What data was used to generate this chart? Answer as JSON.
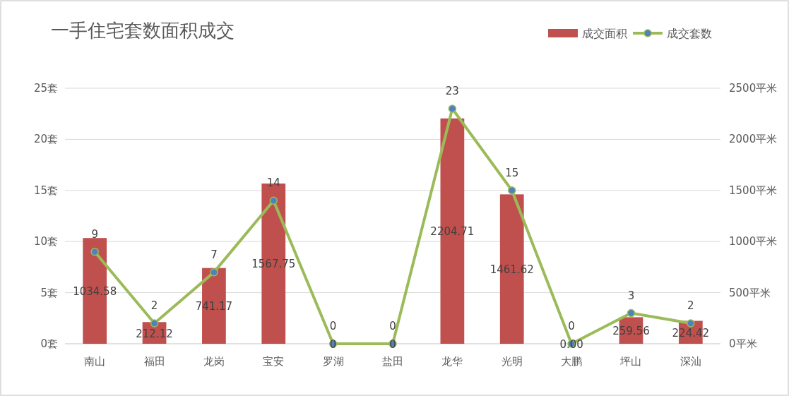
{
  "chart_data": {
    "type": "bar",
    "title": "一手住宅套数面积成交",
    "categories": [
      "南山",
      "福田",
      "龙岗",
      "宝安",
      "罗湖",
      "盐田",
      "龙华",
      "光明",
      "大鹏",
      "坪山",
      "深汕"
    ],
    "series": [
      {
        "name": "成交面积",
        "axis": "y2",
        "color": "#c0504d",
        "values": [
          1034.58,
          212.12,
          741.17,
          1567.75,
          0,
          0,
          2204.71,
          1461.62,
          0,
          259.56,
          224.42
        ],
        "value_labels": [
          "1034.58",
          "212.12",
          "741.17",
          "1567.75",
          "0",
          "0",
          "2204.71",
          "1461.62",
          "0.00",
          "259.56",
          "224.42"
        ]
      },
      {
        "name": "成交套数",
        "type": "line",
        "color": "#9bbb59",
        "values": [
          9,
          2,
          7,
          14,
          0,
          0,
          23,
          15,
          0,
          3,
          2
        ],
        "value_labels": [
          "9",
          "2",
          "7",
          "14",
          "0",
          "0",
          "23",
          "15",
          "0",
          "3",
          "2"
        ]
      }
    ],
    "ylim": [
      0,
      25
    ],
    "yticks": [
      {
        "value": 0,
        "label": "0套"
      },
      {
        "value": 5,
        "label": "5套"
      },
      {
        "value": 10,
        "label": "10套"
      },
      {
        "value": 15,
        "label": "15套"
      },
      {
        "value": 20,
        "label": "20套"
      },
      {
        "value": 25,
        "label": "25套"
      }
    ],
    "y2lim": [
      0,
      2500
    ],
    "y2ticks": [
      {
        "value": 0,
        "label": "0平米"
      },
      {
        "value": 500,
        "label": "500平米"
      },
      {
        "value": 1000,
        "label": "1000平米"
      },
      {
        "value": 1500,
        "label": "1500平米"
      },
      {
        "value": 2000,
        "label": "2000平米"
      },
      {
        "value": 2500,
        "label": "2500平米"
      }
    ],
    "grid": "y",
    "legend": "top right",
    "marker": "circle",
    "line_style": "solid"
  }
}
